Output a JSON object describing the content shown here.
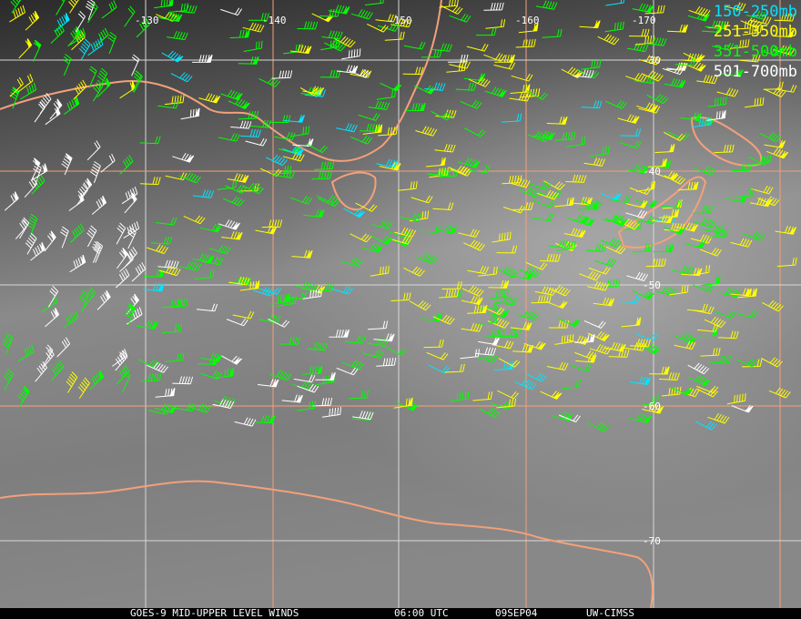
{
  "legend": [
    {
      "label": "150-250mb",
      "color": "#00e5ff"
    },
    {
      "label": "251-350mb",
      "color": "#ffff00"
    },
    {
      "label": "351-500mb",
      "color": "#00ff00"
    },
    {
      "label": "501-700mb",
      "color": "#ffffff"
    }
  ],
  "longitude_labels": [
    "-130",
    "-140",
    "-150",
    "-160",
    "-170"
  ],
  "latitude_labels": [
    "-30",
    "-40",
    "-50",
    "-60",
    "-70"
  ],
  "colors": {
    "coastline": "#f4a07a",
    "grid_major": "#f4a07a",
    "grid_minor": "#d8d8d8"
  },
  "footer": {
    "product": "GOES-9 MID-UPPER LEVEL WINDS",
    "time": "06:00 UTC",
    "date": "09SEP04",
    "source": "UW-CIMSS"
  }
}
